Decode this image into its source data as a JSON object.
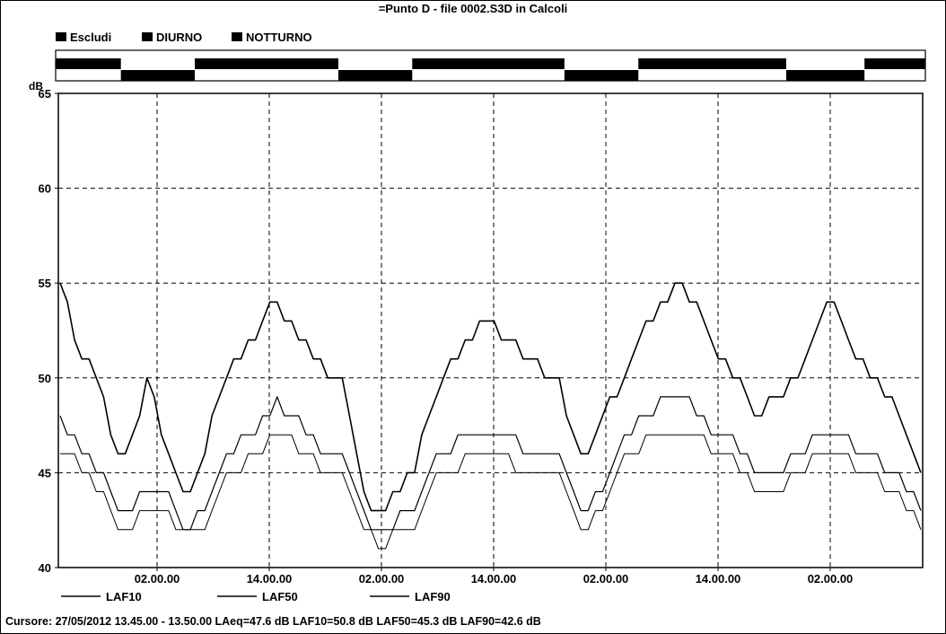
{
  "chart_data": {
    "type": "line",
    "title": "=Punto D - file 0002.S3D in Calcoli",
    "ylabel": "dB",
    "ylim": [
      40,
      65
    ],
    "yticks": [
      "40",
      "45",
      "50",
      "55",
      "60",
      "65"
    ],
    "xticks": [
      "02.00.00",
      "14.00.00",
      "02.00.00",
      "14.00.00",
      "02.00.00",
      "14.00.00",
      "02.00.00"
    ],
    "xlabel": "",
    "grid": true,
    "colors": {
      "line": "#000000",
      "grid": "#000000",
      "band": "#000000"
    },
    "period_legend": [
      {
        "label": "Escludi"
      },
      {
        "label": "DIURNO"
      },
      {
        "label": "NOTTURNO"
      }
    ],
    "period_bands": [
      {
        "start": 0.0,
        "end": 0.075,
        "row": "top"
      },
      {
        "start": 0.075,
        "end": 0.16,
        "row": "bottom"
      },
      {
        "start": 0.16,
        "end": 0.325,
        "row": "top"
      },
      {
        "start": 0.325,
        "end": 0.41,
        "row": "bottom"
      },
      {
        "start": 0.41,
        "end": 0.585,
        "row": "top"
      },
      {
        "start": 0.585,
        "end": 0.67,
        "row": "bottom"
      },
      {
        "start": 0.67,
        "end": 0.84,
        "row": "top"
      },
      {
        "start": 0.84,
        "end": 0.93,
        "row": "bottom"
      },
      {
        "start": 0.93,
        "end": 1.0,
        "row": "top"
      }
    ],
    "series": [
      {
        "name": "LAF10",
        "values": [
          55,
          54,
          52,
          51,
          51,
          50,
          49,
          47,
          46,
          46,
          47,
          48,
          50,
          49,
          47,
          46,
          45,
          44,
          44,
          45,
          46,
          48,
          49,
          50,
          51,
          51,
          52,
          52,
          53,
          54,
          54,
          53,
          53,
          52,
          52,
          51,
          51,
          50,
          50,
          50,
          48,
          46,
          44,
          43,
          43,
          43,
          44,
          44,
          45,
          45,
          47,
          48,
          49,
          50,
          51,
          51,
          52,
          52,
          53,
          53,
          53,
          52,
          52,
          52,
          51,
          51,
          51,
          50,
          50,
          50,
          48,
          47,
          46,
          46,
          47,
          48,
          49,
          49,
          50,
          51,
          52,
          53,
          53,
          54,
          54,
          55,
          55,
          54,
          54,
          53,
          52,
          51,
          51,
          50,
          50,
          49,
          48,
          48,
          49,
          49,
          49,
          50,
          50,
          51,
          52,
          53,
          54,
          54,
          53,
          52,
          51,
          51,
          50,
          50,
          49,
          49,
          48,
          47,
          46,
          45
        ]
      },
      {
        "name": "LAF50",
        "values": [
          48,
          47,
          47,
          46,
          46,
          45,
          45,
          44,
          43,
          43,
          43,
          44,
          44,
          44,
          44,
          44,
          43,
          42,
          42,
          43,
          43,
          44,
          45,
          46,
          46,
          47,
          47,
          47,
          48,
          48,
          49,
          48,
          48,
          48,
          47,
          47,
          46,
          46,
          46,
          46,
          45,
          44,
          43,
          42,
          42,
          42,
          42,
          43,
          43,
          43,
          44,
          45,
          46,
          46,
          46,
          47,
          47,
          47,
          47,
          47,
          47,
          47,
          47,
          47,
          46,
          46,
          46,
          46,
          46,
          46,
          45,
          44,
          43,
          43,
          44,
          44,
          45,
          46,
          47,
          47,
          48,
          48,
          48,
          49,
          49,
          49,
          49,
          49,
          48,
          48,
          47,
          47,
          47,
          47,
          46,
          46,
          45,
          45,
          45,
          45,
          45,
          46,
          46,
          46,
          47,
          47,
          47,
          47,
          47,
          47,
          46,
          46,
          46,
          46,
          45,
          45,
          45,
          44,
          44,
          43
        ]
      },
      {
        "name": "LAF90",
        "values": [
          46,
          46,
          46,
          45,
          45,
          44,
          44,
          43,
          42,
          42,
          42,
          43,
          43,
          43,
          43,
          43,
          42,
          42,
          42,
          42,
          42,
          43,
          44,
          45,
          45,
          45,
          46,
          46,
          46,
          47,
          47,
          47,
          47,
          46,
          46,
          46,
          45,
          45,
          45,
          45,
          44,
          43,
          42,
          42,
          41,
          41,
          42,
          42,
          42,
          42,
          43,
          44,
          45,
          45,
          45,
          45,
          46,
          46,
          46,
          46,
          46,
          46,
          46,
          45,
          45,
          45,
          45,
          45,
          45,
          45,
          44,
          43,
          42,
          42,
          43,
          43,
          44,
          45,
          46,
          46,
          46,
          47,
          47,
          47,
          47,
          47,
          47,
          47,
          47,
          47,
          46,
          46,
          46,
          46,
          45,
          45,
          44,
          44,
          44,
          44,
          44,
          45,
          45,
          45,
          46,
          46,
          46,
          46,
          46,
          46,
          45,
          45,
          45,
          45,
          44,
          44,
          44,
          43,
          43,
          42
        ]
      }
    ]
  },
  "legend": [
    {
      "label": "LAF10"
    },
    {
      "label": "LAF50"
    },
    {
      "label": "LAF90"
    }
  ],
  "cursor_readout": "Cursore: 27/05/2012 13.45.00 - 13.50.00  LAeq=47.6 dB  LAF10=50.8 dB  LAF50=45.3 dB  LAF90=42.6 dB"
}
